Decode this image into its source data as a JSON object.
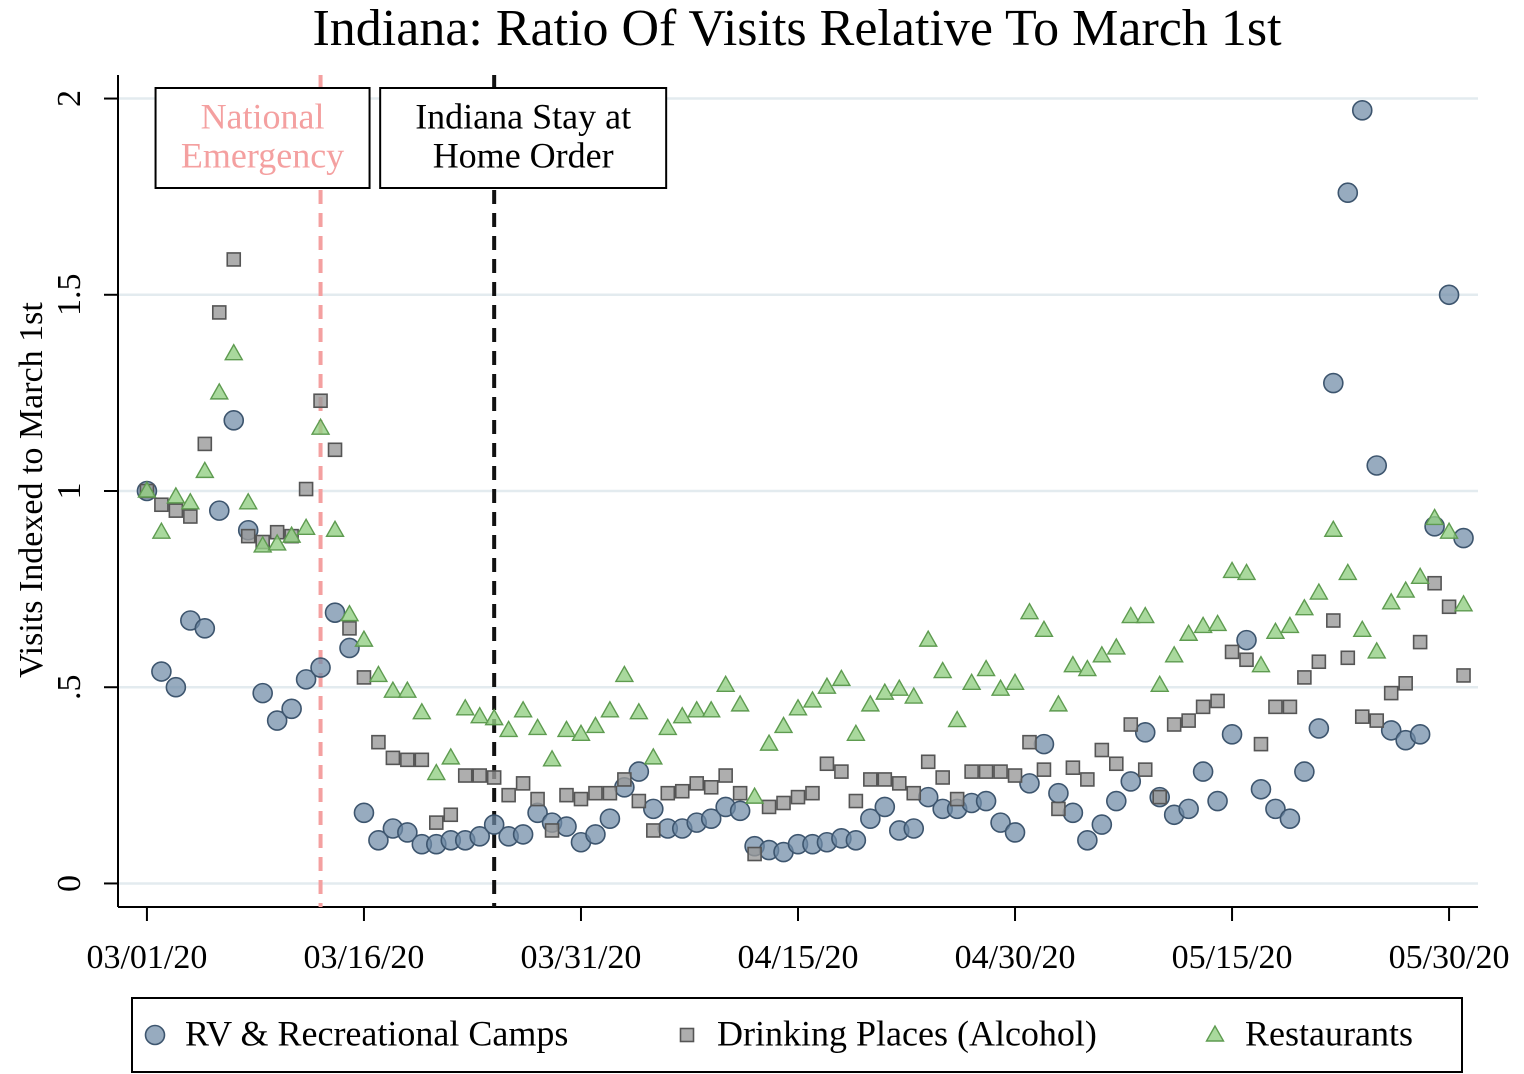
{
  "chart_data": {
    "type": "scatter",
    "title": "Indiana: Ratio Of Visits Relative To March 1st",
    "y_label": "Visits Indexed to March 1st",
    "x": [
      "03/01/20",
      "03/02/20",
      "03/03/20",
      "03/04/20",
      "03/05/20",
      "03/06/20",
      "03/07/20",
      "03/08/20",
      "03/09/20",
      "03/10/20",
      "03/11/20",
      "03/12/20",
      "03/13/20",
      "03/14/20",
      "03/15/20",
      "03/16/20",
      "03/17/20",
      "03/18/20",
      "03/19/20",
      "03/20/20",
      "03/21/20",
      "03/22/20",
      "03/23/20",
      "03/24/20",
      "03/25/20",
      "03/26/20",
      "03/27/20",
      "03/28/20",
      "03/29/20",
      "03/30/20",
      "03/31/20",
      "04/01/20",
      "04/02/20",
      "04/03/20",
      "04/04/20",
      "04/05/20",
      "04/06/20",
      "04/07/20",
      "04/08/20",
      "04/09/20",
      "04/10/20",
      "04/11/20",
      "04/12/20",
      "04/13/20",
      "04/14/20",
      "04/15/20",
      "04/16/20",
      "04/17/20",
      "04/18/20",
      "04/19/20",
      "04/20/20",
      "04/21/20",
      "04/22/20",
      "04/23/20",
      "04/24/20",
      "04/25/20",
      "04/26/20",
      "04/27/20",
      "04/28/20",
      "04/29/20",
      "04/30/20",
      "05/01/20",
      "05/02/20",
      "05/03/20",
      "05/04/20",
      "05/05/20",
      "05/06/20",
      "05/07/20",
      "05/08/20",
      "05/09/20",
      "05/10/20",
      "05/11/20",
      "05/12/20",
      "05/13/20",
      "05/14/20",
      "05/15/20",
      "05/16/20",
      "05/17/20",
      "05/18/20",
      "05/19/20",
      "05/20/20",
      "05/21/20",
      "05/22/20",
      "05/23/20",
      "05/24/20",
      "05/25/20",
      "05/26/20",
      "05/27/20",
      "05/28/20",
      "05/29/20",
      "05/30/20",
      "05/31/20"
    ],
    "series": [
      {
        "name": "RV & Recreational Camps",
        "marker": "circle",
        "color": "#6f8aa6",
        "values": [
          1.0,
          0.54,
          0.5,
          0.67,
          0.65,
          0.95,
          1.18,
          0.9,
          0.485,
          0.415,
          0.445,
          0.52,
          0.55,
          0.69,
          0.6,
          0.18,
          0.11,
          0.14,
          0.13,
          0.1,
          0.1,
          0.11,
          0.11,
          0.12,
          0.15,
          0.12,
          0.125,
          0.18,
          0.155,
          0.145,
          0.105,
          0.125,
          0.165,
          0.245,
          0.285,
          0.19,
          0.14,
          0.14,
          0.155,
          0.165,
          0.195,
          0.185,
          0.095,
          0.085,
          0.08,
          0.1,
          0.1,
          0.105,
          0.115,
          0.11,
          0.165,
          0.195,
          0.135,
          0.14,
          0.22,
          0.19,
          0.19,
          0.205,
          0.21,
          0.155,
          0.13,
          0.255,
          0.355,
          0.23,
          0.18,
          0.11,
          0.15,
          0.21,
          0.26,
          0.385,
          0.22,
          0.175,
          0.19,
          0.285,
          0.21,
          0.38,
          0.62,
          0.24,
          0.19,
          0.165,
          0.285,
          0.395,
          1.275,
          1.76,
          1.97,
          1.065,
          0.39,
          0.365,
          0.38,
          0.91,
          1.5,
          0.88
        ]
      },
      {
        "name": "Drinking Places (Alcohol)",
        "marker": "square",
        "color": "#9a9a9a",
        "values": [
          1.0,
          0.965,
          0.95,
          0.935,
          1.12,
          1.455,
          1.59,
          0.885,
          0.87,
          0.895,
          0.885,
          1.005,
          1.23,
          1.105,
          0.65,
          0.525,
          0.36,
          0.32,
          0.315,
          0.315,
          0.155,
          0.175,
          0.275,
          0.275,
          0.27,
          0.225,
          0.255,
          0.215,
          0.135,
          0.225,
          0.215,
          0.23,
          0.23,
          0.265,
          0.21,
          0.135,
          0.23,
          0.235,
          0.255,
          0.245,
          0.275,
          0.23,
          0.075,
          0.195,
          0.205,
          0.22,
          0.23,
          0.305,
          0.285,
          0.21,
          0.265,
          0.265,
          0.255,
          0.23,
          0.31,
          0.27,
          0.215,
          0.285,
          0.285,
          0.285,
          0.275,
          0.36,
          0.29,
          0.19,
          0.295,
          0.265,
          0.34,
          0.305,
          0.405,
          0.29,
          0.22,
          0.405,
          0.415,
          0.45,
          0.465,
          0.59,
          0.57,
          0.355,
          0.45,
          0.45,
          0.525,
          0.565,
          0.67,
          0.575,
          0.425,
          0.415,
          0.485,
          0.51,
          0.615,
          0.765,
          0.705,
          0.53
        ]
      },
      {
        "name": "Restaurants",
        "marker": "triangle",
        "color": "#93cf84",
        "values": [
          1.0,
          0.895,
          0.985,
          0.97,
          1.05,
          1.25,
          1.35,
          0.97,
          0.86,
          0.865,
          0.885,
          0.905,
          1.16,
          0.9,
          0.685,
          0.62,
          0.53,
          0.49,
          0.49,
          0.435,
          0.28,
          0.32,
          0.445,
          0.425,
          0.42,
          0.39,
          0.44,
          0.395,
          0.315,
          0.39,
          0.38,
          0.4,
          0.44,
          0.53,
          0.435,
          0.32,
          0.395,
          0.425,
          0.44,
          0.44,
          0.505,
          0.455,
          0.22,
          0.355,
          0.4,
          0.445,
          0.465,
          0.5,
          0.52,
          0.38,
          0.455,
          0.485,
          0.495,
          0.475,
          0.62,
          0.54,
          0.415,
          0.51,
          0.545,
          0.495,
          0.51,
          0.69,
          0.645,
          0.455,
          0.555,
          0.545,
          0.58,
          0.6,
          0.68,
          0.68,
          0.505,
          0.58,
          0.635,
          0.655,
          0.66,
          0.795,
          0.79,
          0.555,
          0.64,
          0.655,
          0.7,
          0.74,
          0.9,
          0.79,
          0.645,
          0.59,
          0.715,
          0.745,
          0.78,
          0.93,
          0.895,
          0.71
        ]
      }
    ],
    "xlim": [
      "02/28/20",
      "06/01/20"
    ],
    "xticks": [
      "03/01/20",
      "03/16/20",
      "03/31/20",
      "04/15/20",
      "04/30/20",
      "05/15/20",
      "05/30/20"
    ],
    "ylim": [
      -0.06,
      2.06
    ],
    "yticks": [
      0,
      {
        "value": 0.5,
        "label": ".5"
      },
      1,
      1.5,
      2
    ],
    "grid": true,
    "legend": "bottom",
    "annotations": [
      {
        "x": "03/13/20",
        "lines": [
          "National",
          "Emergency"
        ],
        "color": "#f4a0a0"
      },
      {
        "x": "03/25/20",
        "lines": [
          "Indiana Stay at",
          "Home Order"
        ],
        "color": "#000000"
      }
    ]
  }
}
